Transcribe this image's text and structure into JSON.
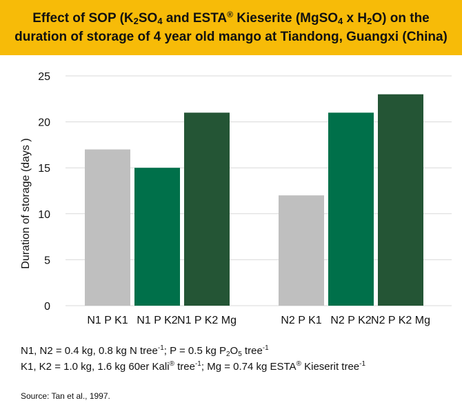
{
  "header": {
    "line1": {
      "a": "Effect of SOP (K",
      "b": "2",
      "c": "SO",
      "d": "4",
      "e": " and ESTA",
      "f": "®",
      "g": " Kieserite (MgSO",
      "h": "4",
      "i": " x H",
      "j": "2",
      "k": "O) on the"
    },
    "line2": "duration of storage of 4 year old mango at Tiandong, Guangxi (China)",
    "background": "#f7bb08"
  },
  "chart_data": {
    "type": "bar",
    "ylabel": "Duration of storage (days )",
    "ylim": [
      0,
      25
    ],
    "yticks": [
      0,
      5,
      10,
      15,
      20,
      25
    ],
    "groups": [
      {
        "bars": [
          {
            "label": "N1 P K1",
            "value": 17,
            "color": "#bfbfbf"
          },
          {
            "label": "N1 P K2",
            "value": 15,
            "color": "#00704a"
          },
          {
            "label": "N1 P K2 Mg",
            "value": 21,
            "color": "#245535"
          }
        ]
      },
      {
        "bars": [
          {
            "label": "N2 P K1",
            "value": 12,
            "color": "#bfbfbf"
          },
          {
            "label": "N2 P K2",
            "value": 21,
            "color": "#00704a"
          },
          {
            "label": "N2 P K2 Mg",
            "value": 23,
            "color": "#245535"
          }
        ]
      }
    ],
    "grid": true,
    "gridColor": "#d9d9d9"
  },
  "notes": {
    "line1": {
      "a": "N1, N2 = 0.4 kg, 0.8 kg N tree",
      "b": "-1",
      "c": "; P = 0.5 kg P",
      "d": "2",
      "e": "O",
      "f": "5",
      "g": " tree",
      "h": "-1"
    },
    "line2": {
      "a": "K1, K2 = 1.0 kg, 1.6 kg 60er Kali",
      "b": "®",
      "c": " tree",
      "d": "-1",
      "e": "; Mg = 0.74 kg ESTA",
      "f": "®",
      "g": " Kieserit tree",
      "h": "-1"
    }
  },
  "source": "Source: Tan et al., 1997."
}
